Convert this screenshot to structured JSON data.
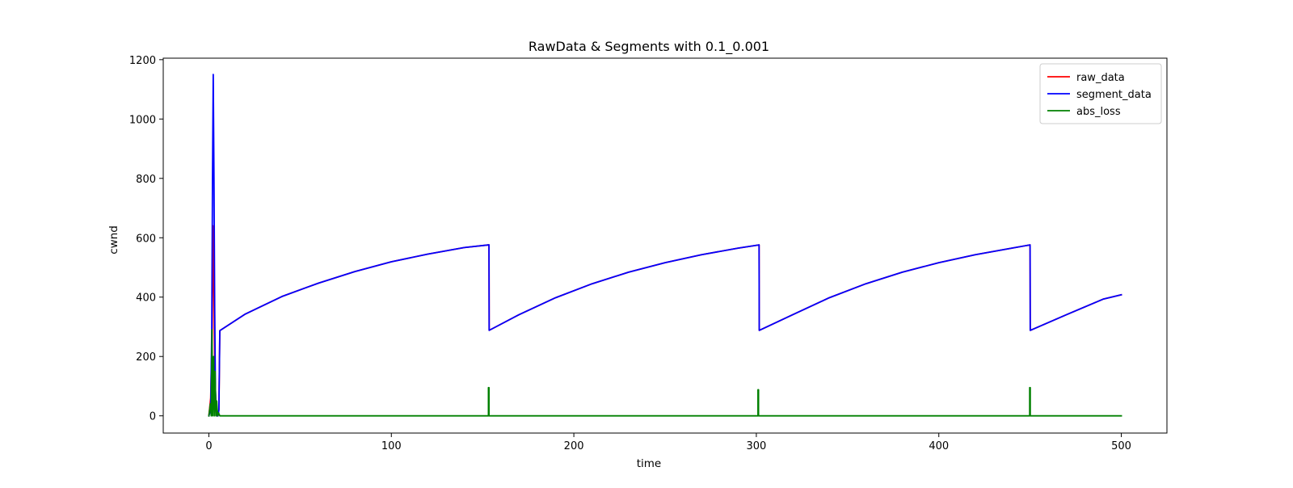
{
  "chart_data": {
    "type": "line",
    "title": "RawData & Segments with 0.1_0.001",
    "xlabel": "time",
    "ylabel": "cwnd",
    "xlim": [
      -25,
      525
    ],
    "ylim": [
      -58,
      1205
    ],
    "xticks": [
      0,
      100,
      200,
      300,
      400,
      500
    ],
    "yticks": [
      0,
      200,
      400,
      600,
      800,
      1000,
      1200
    ],
    "grid": false,
    "legend_position": "top-right",
    "series": [
      {
        "name": "raw_data",
        "color": "#ff0000",
        "x": [
          0,
          1.0,
          1.8,
          2.3,
          2.7,
          3.2,
          3.8,
          4.4,
          5.0,
          5.5,
          6.0,
          20,
          40,
          60,
          80,
          100,
          120,
          140,
          153.5,
          153.6,
          170,
          190,
          210,
          230,
          250,
          270,
          290,
          301.5,
          301.6,
          320,
          340,
          360,
          380,
          400,
          420,
          440,
          450.0,
          450.1,
          470,
          490,
          500
        ],
        "y": [
          0,
          60,
          280,
          640,
          480,
          170,
          35,
          0,
          0,
          20,
          287,
          343,
          402,
          447,
          486,
          519,
          545,
          567,
          576,
          288,
          341,
          398,
          445,
          484,
          516,
          543,
          565,
          576,
          288,
          341,
          398,
          445,
          484,
          516,
          543,
          565,
          576,
          288,
          341,
          393,
          408
        ]
      },
      {
        "name": "segment_data",
        "color": "#0000ff",
        "x": [
          0,
          1.0,
          1.6,
          2.0,
          2.4,
          2.8,
          3.2,
          3.6,
          4.0,
          4.4,
          5.0,
          5.5,
          6.0,
          20,
          40,
          60,
          80,
          100,
          120,
          140,
          153.5,
          153.6,
          170,
          190,
          210,
          230,
          250,
          270,
          290,
          301.5,
          301.6,
          320,
          340,
          360,
          380,
          400,
          420,
          440,
          450.0,
          450.1,
          470,
          490,
          500
        ],
        "y": [
          0,
          20,
          300,
          800,
          1150,
          800,
          360,
          90,
          20,
          0,
          0,
          20,
          287,
          343,
          402,
          447,
          486,
          519,
          545,
          567,
          576,
          288,
          341,
          398,
          445,
          484,
          516,
          543,
          565,
          576,
          288,
          341,
          398,
          445,
          484,
          516,
          543,
          565,
          576,
          288,
          341,
          393,
          408
        ]
      },
      {
        "name": "abs_loss",
        "color": "#008000",
        "x": [
          0,
          0.8,
          1.3,
          1.7,
          2.1,
          2.6,
          3.0,
          3.4,
          3.9,
          4.3,
          4.8,
          5.3,
          6.0,
          153.2,
          153.2,
          153.5,
          153.5,
          153.8,
          300.9,
          300.9,
          301.2,
          301.2,
          301.5,
          449.8,
          449.8,
          450.1,
          450.1,
          450.4,
          500
        ],
        "y": [
          0,
          40,
          0,
          290,
          0,
          200,
          0,
          150,
          0,
          50,
          0,
          10,
          0,
          0,
          95,
          95,
          0,
          0,
          0,
          88,
          88,
          0,
          0,
          0,
          95,
          95,
          0,
          0,
          0
        ]
      }
    ]
  }
}
